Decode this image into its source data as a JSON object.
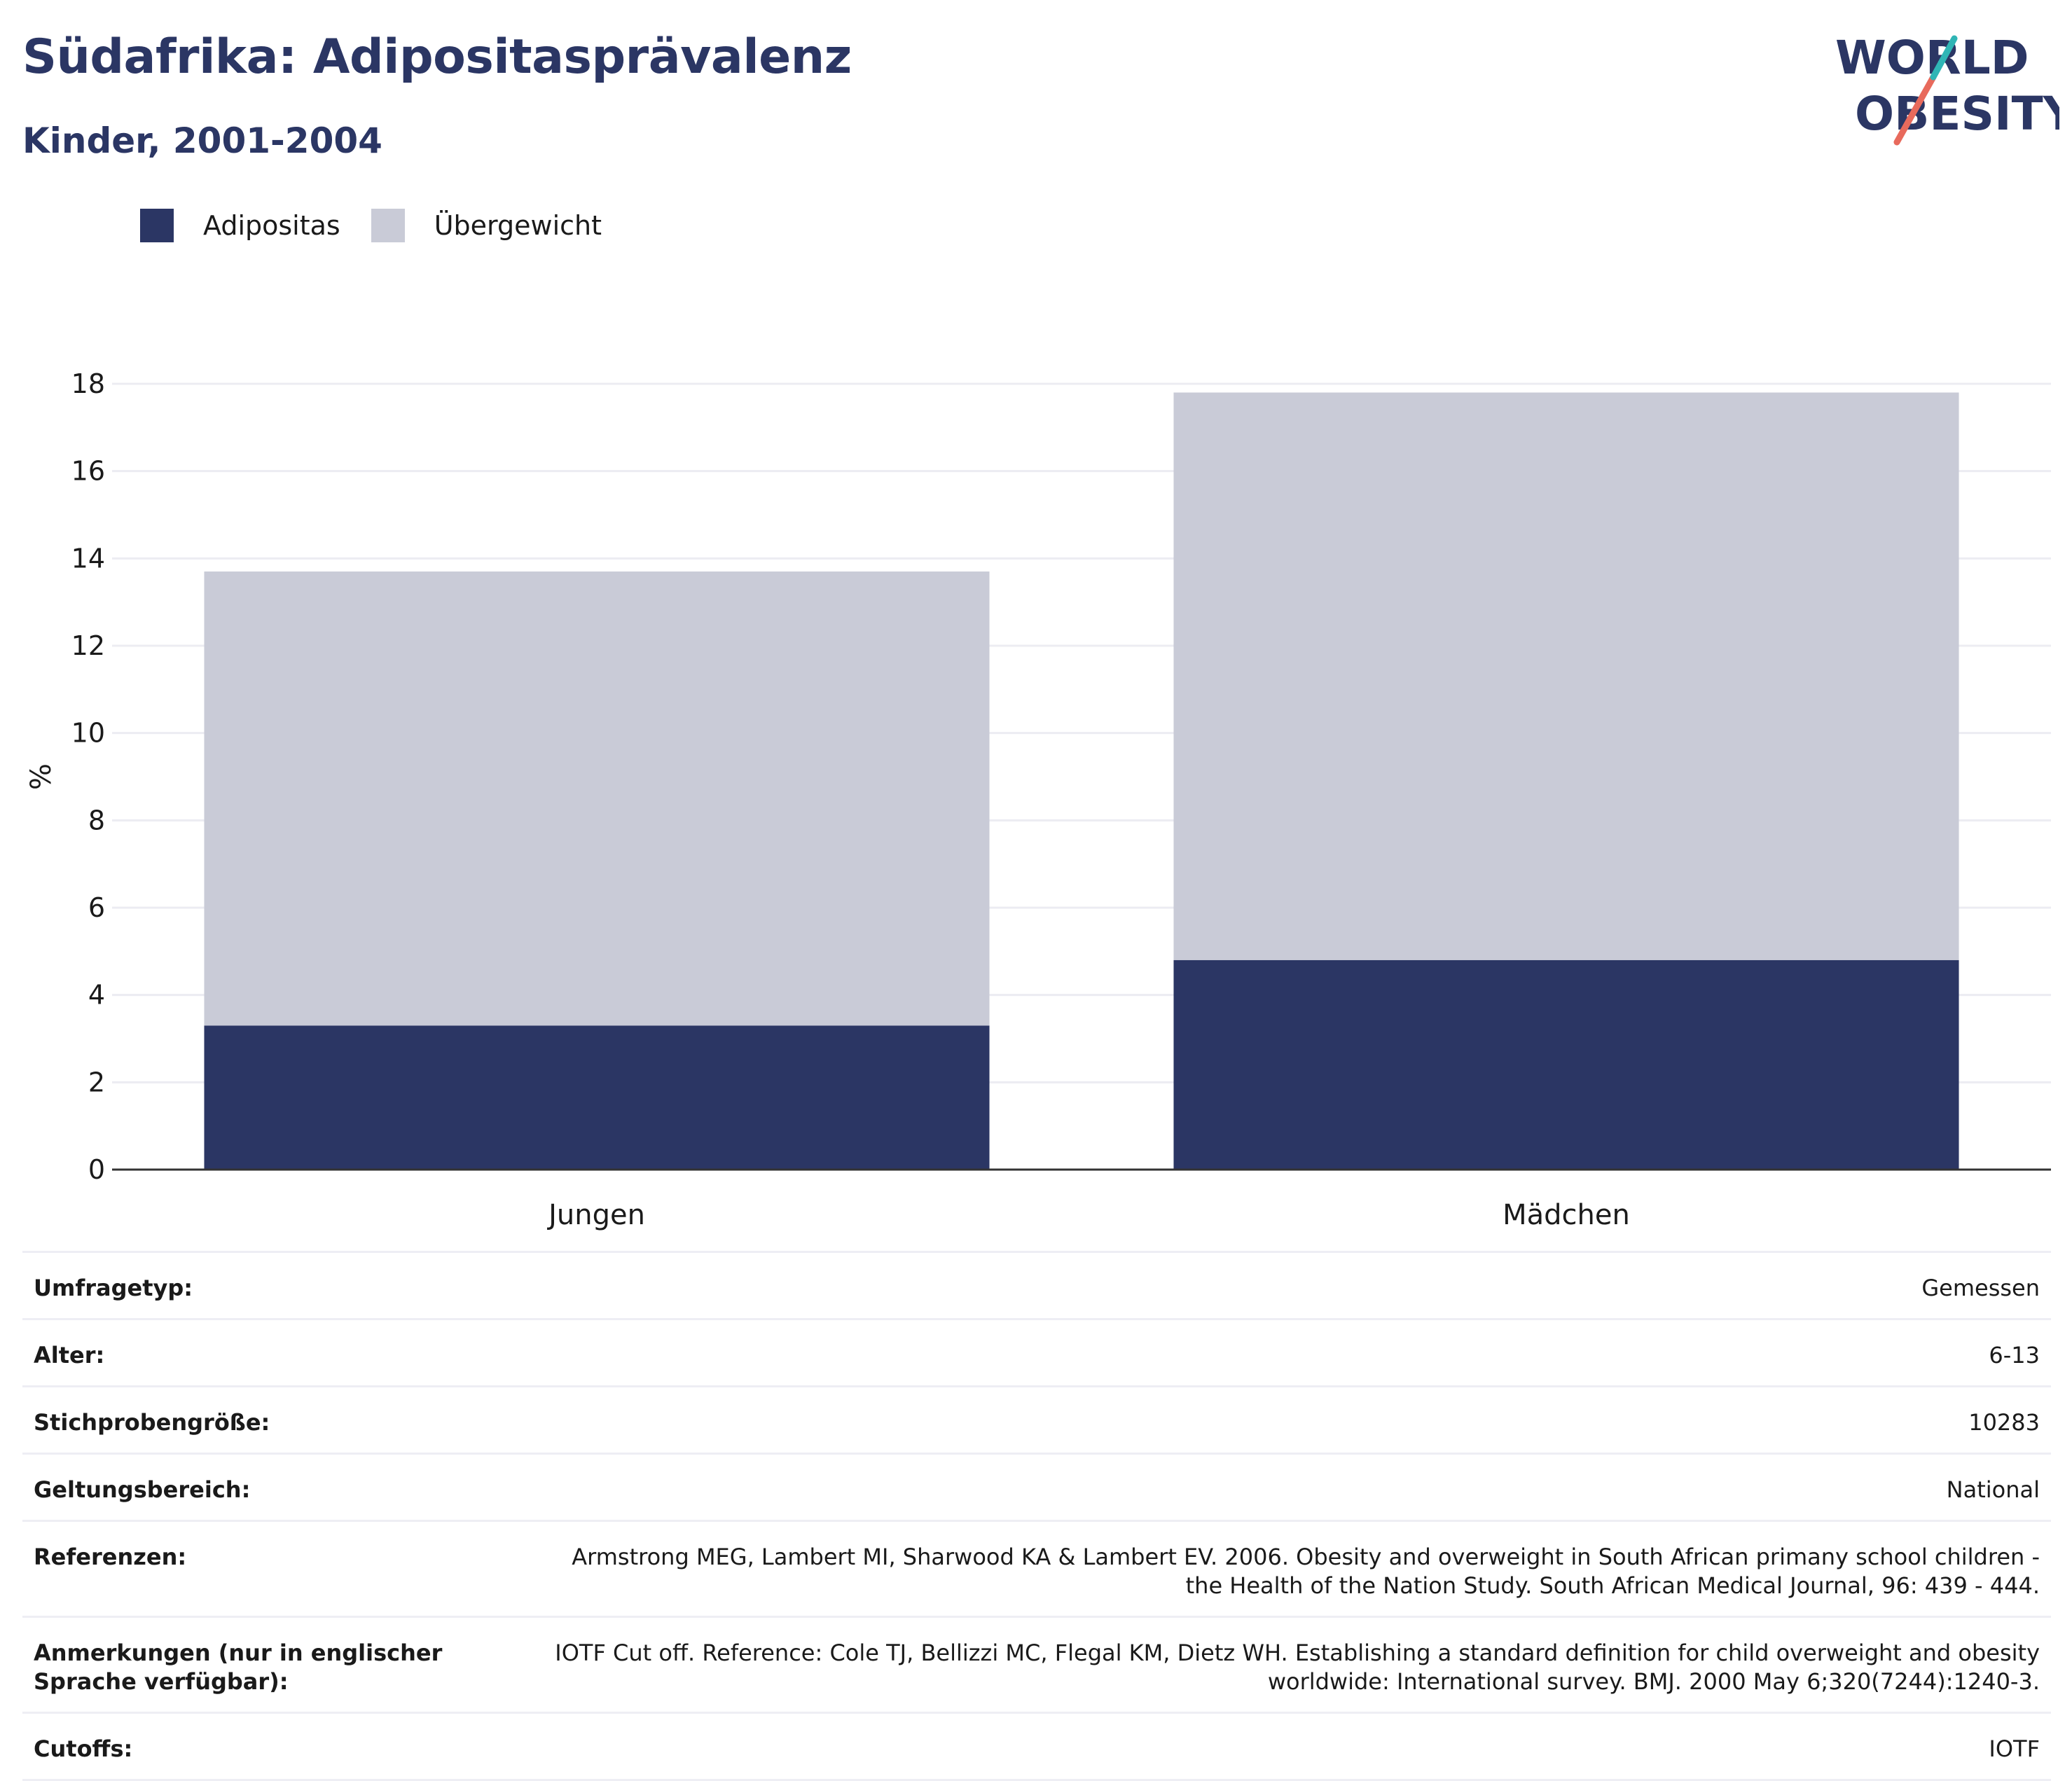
{
  "header": {
    "title": "Südafrika: Adipositasprävalenz",
    "subtitle": "Kinder, 2001-2004"
  },
  "logo": {
    "line1": "WORLD",
    "line2": "OBESITY"
  },
  "colors": {
    "adipositas": "#2b3664",
    "uebergewicht": "#c9cbd7",
    "brand_teal": "#2fb5b5",
    "brand_coral": "#e86a5c"
  },
  "legend": [
    {
      "label": "Adipositas",
      "color": "#2b3664"
    },
    {
      "label": "Übergewicht",
      "color": "#c9cbd7"
    }
  ],
  "chart_data": {
    "type": "bar",
    "stacked": true,
    "categories": [
      "Jungen",
      "Mädchen"
    ],
    "series": [
      {
        "name": "Adipositas",
        "values": [
          3.3,
          4.8
        ]
      },
      {
        "name": "Übergewicht",
        "values": [
          10.4,
          13.0
        ]
      }
    ],
    "ylabel": "%",
    "ylim": [
      0,
      18
    ],
    "yticks": [
      0,
      2,
      4,
      6,
      8,
      10,
      12,
      14,
      16,
      18
    ],
    "grid": true,
    "legend_position": "top-left"
  },
  "info": [
    {
      "label": "Umfragetyp:",
      "value": "Gemessen"
    },
    {
      "label": "Alter:",
      "value": "6-13"
    },
    {
      "label": "Stichprobengröße:",
      "value": "10283"
    },
    {
      "label": "Geltungsbereich:",
      "value": "National"
    },
    {
      "label": "Referenzen:",
      "value": "Armstrong MEG, Lambert MI, Sharwood KA & Lambert EV. 2006. Obesity and overweight in South African primany school children - the Health of the Nation Study. South African Medical Journal, 96: 439 - 444."
    },
    {
      "label": "Anmerkungen (nur in englischer Sprache verfügbar):",
      "value": "IOTF Cut off. Reference: Cole TJ, Bellizzi MC, Flegal KM, Dietz WH. Establishing a standard definition for child overweight and obesity worldwide: International survey. BMJ. 2000 May 6;320(7244):1240-3."
    },
    {
      "label": "Cutoffs:",
      "value": "IOTF"
    }
  ]
}
